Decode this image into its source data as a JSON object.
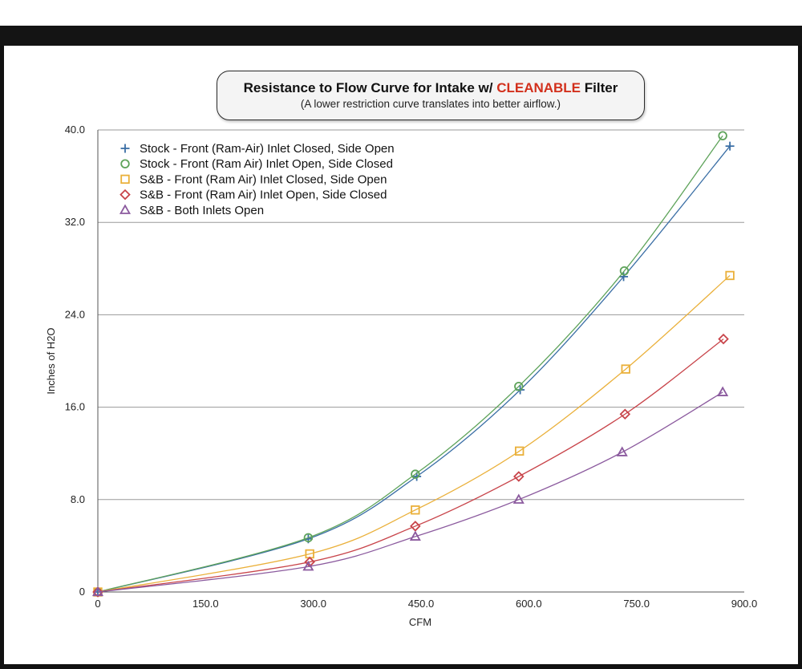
{
  "chart_data": {
    "type": "line",
    "title_prefix": "Resistance to Flow Curve for Intake w/ ",
    "title_highlight": "CLEANABLE",
    "title_suffix": " Filter",
    "subtitle": "(A lower restriction curve translates into better airflow.)",
    "xlabel": "CFM",
    "ylabel": "Inches of H2O",
    "xlim": [
      0,
      900
    ],
    "ylim": [
      0,
      40
    ],
    "x_ticks": [
      0,
      150,
      300,
      450,
      600,
      750,
      900
    ],
    "x_tick_labels": [
      "0",
      "150.0",
      "300.0",
      "450.0",
      "600.0",
      "750.0",
      "900.0"
    ],
    "y_ticks": [
      0,
      8,
      16,
      24,
      32,
      40
    ],
    "y_tick_labels": [
      "0",
      "8.0",
      "16.0",
      "24.0",
      "32.0",
      "40.0"
    ],
    "grid": "horizontal",
    "legend_position": "top-left",
    "series": [
      {
        "name": "Stock - Front (Ram-Air) Inlet Closed, Side Open",
        "color": "#3a6ea5",
        "marker": "plus",
        "x": [
          0,
          293,
          444,
          588,
          732,
          880
        ],
        "y": [
          0,
          4.6,
          10.0,
          17.5,
          27.3,
          38.6
        ]
      },
      {
        "name": "Stock - Front (Ram Air) Inlet Open, Side Closed",
        "color": "#5ea35a",
        "marker": "circle",
        "x": [
          0,
          293,
          442,
          586,
          733,
          870
        ],
        "y": [
          0,
          4.7,
          10.2,
          17.8,
          27.8,
          39.5
        ]
      },
      {
        "name": "S&B - Front (Ram Air) Inlet Closed, Side Open",
        "color": "#eab03a",
        "marker": "square",
        "x": [
          0,
          295,
          442,
          587,
          735,
          880
        ],
        "y": [
          0,
          3.3,
          7.1,
          12.2,
          19.3,
          27.4
        ]
      },
      {
        "name": "S&B - Front (Ram Air) Inlet Open, Side Closed",
        "color": "#c8444a",
        "marker": "diamond",
        "x": [
          0,
          295,
          442,
          586,
          734,
          871
        ],
        "y": [
          0,
          2.6,
          5.7,
          10.0,
          15.4,
          21.9
        ]
      },
      {
        "name": "S&B - Both Inlets Open",
        "color": "#8b5a9e",
        "marker": "triangle",
        "x": [
          0,
          293,
          442,
          586,
          730,
          870
        ],
        "y": [
          0,
          2.2,
          4.8,
          8.0,
          12.1,
          17.3
        ]
      }
    ]
  }
}
